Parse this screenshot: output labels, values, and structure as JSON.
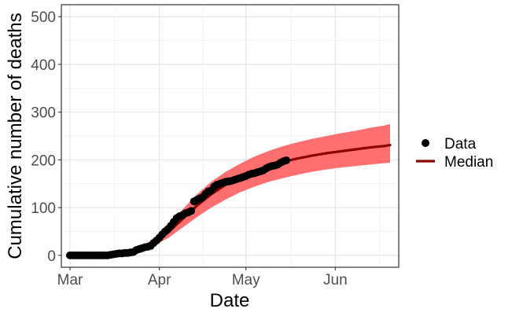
{
  "chart_data": {
    "type": "line",
    "title": "",
    "xlabel": "Date",
    "ylabel": "Cumulative number of deaths",
    "x_range": [
      "2020-02-27",
      "2020-06-23"
    ],
    "ylim": [
      -25,
      525
    ],
    "x_ticks": [
      {
        "date": "2020-03-01",
        "label": "Mar"
      },
      {
        "date": "2020-04-01",
        "label": "Apr"
      },
      {
        "date": "2020-05-01",
        "label": "May"
      },
      {
        "date": "2020-06-01",
        "label": "Jun"
      }
    ],
    "y_ticks": [
      0,
      100,
      200,
      300,
      400,
      500
    ],
    "grid": true,
    "legend": {
      "placement": "right",
      "entries": [
        {
          "name": "Data",
          "kind": "point",
          "color": "#000000"
        },
        {
          "name": "Median",
          "kind": "line",
          "color": "#8b0000"
        }
      ]
    },
    "series": [
      {
        "name": "Data",
        "kind": "scatter",
        "color": "#000000",
        "points": [
          [
            "2020-03-01",
            0
          ],
          [
            "2020-03-02",
            0
          ],
          [
            "2020-03-03",
            0
          ],
          [
            "2020-03-04",
            0
          ],
          [
            "2020-03-05",
            0
          ],
          [
            "2020-03-06",
            0
          ],
          [
            "2020-03-07",
            0
          ],
          [
            "2020-03-08",
            0
          ],
          [
            "2020-03-09",
            0
          ],
          [
            "2020-03-10",
            0
          ],
          [
            "2020-03-11",
            0
          ],
          [
            "2020-03-12",
            0
          ],
          [
            "2020-03-13",
            0
          ],
          [
            "2020-03-14",
            0
          ],
          [
            "2020-03-15",
            1
          ],
          [
            "2020-03-16",
            2
          ],
          [
            "2020-03-17",
            3
          ],
          [
            "2020-03-18",
            4
          ],
          [
            "2020-03-19",
            4
          ],
          [
            "2020-03-20",
            5
          ],
          [
            "2020-03-21",
            5
          ],
          [
            "2020-03-22",
            6
          ],
          [
            "2020-03-23",
            7
          ],
          [
            "2020-03-24",
            11
          ],
          [
            "2020-03-25",
            13
          ],
          [
            "2020-03-26",
            15
          ],
          [
            "2020-03-27",
            17
          ],
          [
            "2020-03-28",
            18
          ],
          [
            "2020-03-29",
            20
          ],
          [
            "2020-03-30",
            26
          ],
          [
            "2020-03-31",
            31
          ],
          [
            "2020-04-01",
            37
          ],
          [
            "2020-04-02",
            44
          ],
          [
            "2020-04-03",
            50
          ],
          [
            "2020-04-04",
            55
          ],
          [
            "2020-04-05",
            62
          ],
          [
            "2020-04-06",
            70
          ],
          [
            "2020-04-07",
            78
          ],
          [
            "2020-04-08",
            82
          ],
          [
            "2020-04-09",
            84
          ],
          [
            "2020-04-10",
            88
          ],
          [
            "2020-04-11",
            90
          ],
          [
            "2020-04-12",
            93
          ],
          [
            "2020-04-13",
            113
          ],
          [
            "2020-04-14",
            116
          ],
          [
            "2020-04-15",
            119
          ],
          [
            "2020-04-16",
            122
          ],
          [
            "2020-04-17",
            129
          ],
          [
            "2020-04-18",
            134
          ],
          [
            "2020-04-19",
            136
          ],
          [
            "2020-04-20",
            144
          ],
          [
            "2020-04-21",
            148
          ],
          [
            "2020-04-22",
            150
          ],
          [
            "2020-04-23",
            152
          ],
          [
            "2020-04-24",
            154
          ],
          [
            "2020-04-25",
            155
          ],
          [
            "2020-04-26",
            156
          ],
          [
            "2020-04-27",
            158
          ],
          [
            "2020-04-28",
            160
          ],
          [
            "2020-04-29",
            162
          ],
          [
            "2020-04-30",
            164
          ],
          [
            "2020-05-01",
            166
          ],
          [
            "2020-05-02",
            169
          ],
          [
            "2020-05-03",
            171
          ],
          [
            "2020-05-04",
            172
          ],
          [
            "2020-05-05",
            174
          ],
          [
            "2020-05-06",
            176
          ],
          [
            "2020-05-07",
            178
          ],
          [
            "2020-05-08",
            182
          ],
          [
            "2020-05-09",
            185
          ],
          [
            "2020-05-10",
            187
          ],
          [
            "2020-05-11",
            188
          ],
          [
            "2020-05-12",
            190
          ],
          [
            "2020-05-13",
            194
          ],
          [
            "2020-05-14",
            197
          ],
          [
            "2020-05-15",
            199
          ]
        ]
      },
      {
        "name": "Median",
        "kind": "line",
        "color": "#8b0000",
        "points": [
          [
            "2020-03-20",
            5
          ],
          [
            "2020-03-25",
            12
          ],
          [
            "2020-03-30",
            26
          ],
          [
            "2020-04-04",
            48
          ],
          [
            "2020-04-09",
            76
          ],
          [
            "2020-04-14",
            104
          ],
          [
            "2020-04-19",
            128
          ],
          [
            "2020-04-24",
            148
          ],
          [
            "2020-04-29",
            163
          ],
          [
            "2020-05-04",
            176
          ],
          [
            "2020-05-09",
            187
          ],
          [
            "2020-05-14",
            196
          ],
          [
            "2020-05-19",
            203
          ],
          [
            "2020-05-24",
            209
          ],
          [
            "2020-05-29",
            214
          ],
          [
            "2020-06-03",
            218
          ],
          [
            "2020-06-08",
            222
          ],
          [
            "2020-06-13",
            226
          ],
          [
            "2020-06-18",
            229
          ],
          [
            "2020-06-20",
            231
          ]
        ]
      },
      {
        "name": "Interval",
        "kind": "band",
        "color": "#ff6f6f",
        "points": [
          [
            "2020-03-20",
            3,
            7
          ],
          [
            "2020-03-25",
            9,
            16
          ],
          [
            "2020-03-30",
            20,
            34
          ],
          [
            "2020-04-04",
            36,
            62
          ],
          [
            "2020-04-09",
            58,
            96
          ],
          [
            "2020-04-14",
            80,
            128
          ],
          [
            "2020-04-19",
            100,
            154
          ],
          [
            "2020-04-24",
            117,
            175
          ],
          [
            "2020-04-29",
            132,
            192
          ],
          [
            "2020-05-04",
            144,
            207
          ],
          [
            "2020-05-09",
            154,
            219
          ],
          [
            "2020-05-14",
            162,
            229
          ],
          [
            "2020-05-19",
            169,
            237
          ],
          [
            "2020-05-24",
            175,
            244
          ],
          [
            "2020-05-29",
            180,
            250
          ],
          [
            "2020-06-03",
            184,
            256
          ],
          [
            "2020-06-08",
            187,
            261
          ],
          [
            "2020-06-13",
            190,
            267
          ],
          [
            "2020-06-18",
            193,
            272
          ],
          [
            "2020-06-20",
            194,
            275
          ]
        ]
      }
    ]
  }
}
